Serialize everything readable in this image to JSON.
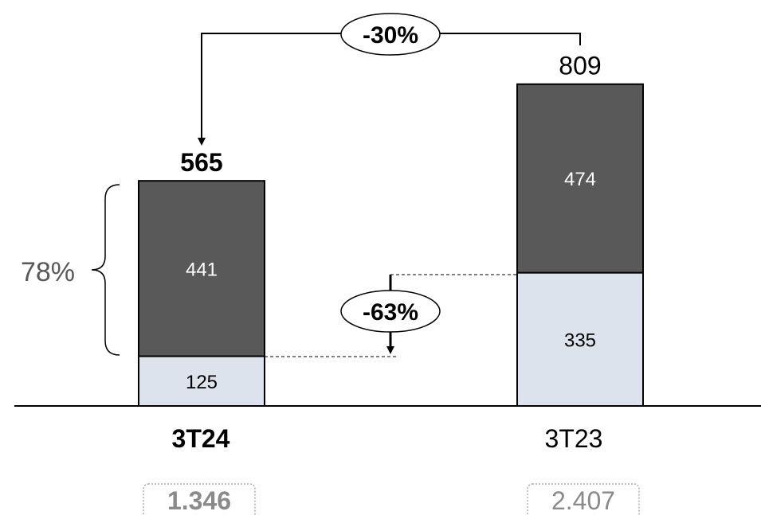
{
  "chart_data": {
    "type": "bar",
    "stacked": true,
    "categories": [
      "3T24",
      "3T23"
    ],
    "series": [
      {
        "values": [
          125,
          335
        ],
        "color": "#dde3ed"
      },
      {
        "values": [
          441,
          474
        ],
        "color": "#595959"
      }
    ],
    "totals": [
      "565",
      "809"
    ],
    "segment_labels": [
      [
        "125",
        "441"
      ],
      [
        "335",
        "474"
      ]
    ],
    "footer_values": [
      "1.346",
      "2.407"
    ],
    "annotations": {
      "total_change": "-30%",
      "base_change": "-63%",
      "share": "78%"
    },
    "colors": {
      "dark": "#595959",
      "light": "#dde3ed",
      "axis": "#000000"
    }
  }
}
